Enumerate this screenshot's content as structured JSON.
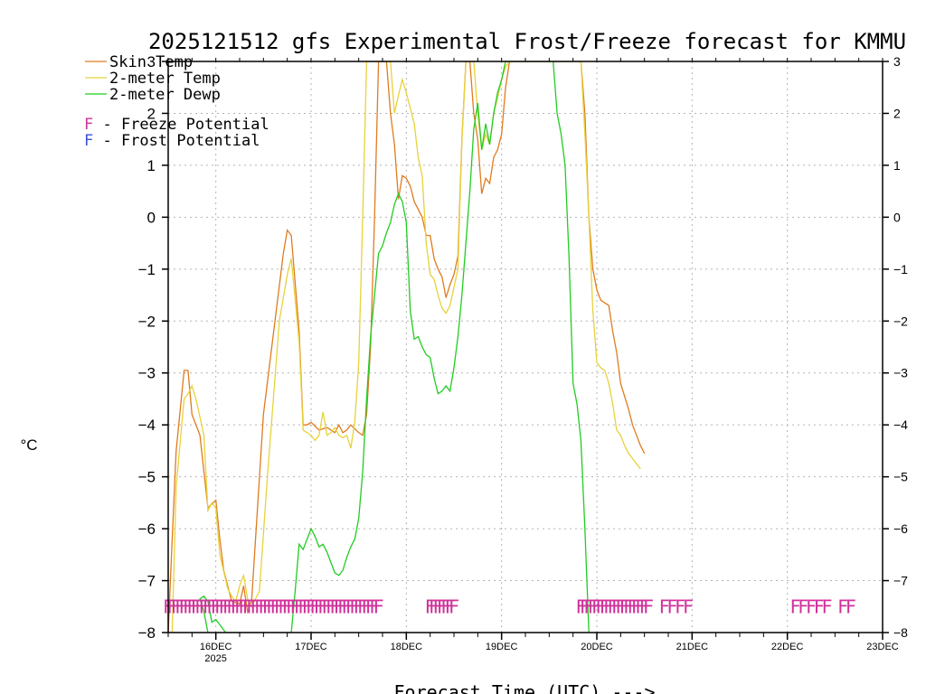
{
  "chart_data": {
    "type": "line",
    "title": "2025121512 gfs Experimental Frost/Freeze forecast for KMMU",
    "ylabel": "°C",
    "xlabel": "Forecast Time (UTC) --->",
    "ylim": [
      -8,
      3
    ],
    "yticks": [
      -8,
      -7,
      -6,
      -5,
      -4,
      -3,
      -2,
      -1,
      0,
      1,
      2,
      3
    ],
    "xlim_hours": [
      0,
      180
    ],
    "xticks": [
      {
        "hour": 12,
        "label": "16DEC",
        "sublabel": "2025"
      },
      {
        "hour": 36,
        "label": "17DEC"
      },
      {
        "hour": 60,
        "label": "18DEC"
      },
      {
        "hour": 84,
        "label": "19DEC"
      },
      {
        "hour": 108,
        "label": "20DEC"
      },
      {
        "hour": 132,
        "label": "21DEC"
      },
      {
        "hour": 156,
        "label": "22DEC"
      },
      {
        "hour": 180,
        "label": "23DEC"
      }
    ],
    "legend": {
      "placement": "top-left",
      "series_entries": [
        "Skin Temp",
        "2-meter Temp",
        "2-meter Dewp"
      ],
      "marker_entries": [
        {
          "glyph": "F",
          "text": " - Freeze Potential",
          "color": "#d0309a"
        },
        {
          "glyph": "F",
          "text": " - Frost Potential",
          "color": "#3c50e0"
        }
      ]
    },
    "series": [
      {
        "name": "Skin Temp",
        "color": "#e07b1e",
        "points": [
          [
            0,
            -8
          ],
          [
            1,
            -6.2
          ],
          [
            2,
            -4.5
          ],
          [
            4,
            -2.95
          ],
          [
            5,
            -2.95
          ],
          [
            6,
            -3.8
          ],
          [
            8,
            -4.2
          ],
          [
            10,
            -5.6
          ],
          [
            12,
            -5.45
          ],
          [
            13,
            -6.2
          ],
          [
            14,
            -6.8
          ],
          [
            16,
            -7.4
          ],
          [
            18,
            -7.45
          ],
          [
            19,
            -7.1
          ],
          [
            20,
            -7.6
          ],
          [
            21,
            -7.4
          ],
          [
            24,
            -3.8
          ],
          [
            29,
            -0.7
          ],
          [
            30,
            -0.25
          ],
          [
            31,
            -0.35
          ],
          [
            33,
            -2.2
          ],
          [
            34,
            -4.0
          ],
          [
            35,
            -4.0
          ],
          [
            36,
            -3.95
          ],
          [
            38,
            -4.1
          ],
          [
            40,
            -4.05
          ],
          [
            42,
            -4.15
          ],
          [
            43,
            -4.0
          ],
          [
            44,
            -4.15
          ],
          [
            45,
            -4.1
          ],
          [
            46,
            -4.0
          ],
          [
            48,
            -4.15
          ],
          [
            49,
            -4.2
          ],
          [
            50,
            -3.8
          ],
          [
            51,
            -2.5
          ],
          [
            52,
            0
          ],
          [
            53,
            3
          ],
          [
            55,
            3
          ],
          [
            56,
            2
          ],
          [
            57,
            1.4
          ],
          [
            58,
            0.35
          ],
          [
            59,
            0.8
          ],
          [
            60,
            0.75
          ],
          [
            61,
            0.6
          ],
          [
            62,
            0.3
          ],
          [
            63,
            0.15
          ],
          [
            64,
            0
          ],
          [
            65,
            -0.35
          ],
          [
            66,
            -0.35
          ],
          [
            67,
            -0.8
          ],
          [
            68,
            -1.0
          ],
          [
            69,
            -1.15
          ],
          [
            70,
            -1.55
          ],
          [
            71,
            -1.3
          ],
          [
            72,
            -1.1
          ],
          [
            73,
            -0.75
          ],
          [
            74,
            1.5
          ],
          [
            75,
            3
          ],
          [
            76,
            3
          ],
          [
            77,
            2.0
          ],
          [
            78,
            1.5
          ],
          [
            79,
            0.45
          ],
          [
            80,
            0.75
          ],
          [
            81,
            0.65
          ],
          [
            82,
            1.15
          ],
          [
            83,
            1.3
          ],
          [
            84,
            1.6
          ],
          [
            85,
            2.5
          ],
          [
            86,
            3
          ],
          [
            104,
            3
          ],
          [
            105,
            2.0
          ],
          [
            106,
            0
          ],
          [
            107,
            -1.0
          ],
          [
            108,
            -1.4
          ],
          [
            109,
            -1.6
          ],
          [
            110,
            -1.65
          ],
          [
            111,
            -1.7
          ],
          [
            112,
            -2.2
          ],
          [
            113,
            -2.6
          ],
          [
            114,
            -3.2
          ],
          [
            116,
            -3.7
          ],
          [
            117,
            -4.0
          ],
          [
            118,
            -4.2
          ],
          [
            119,
            -4.4
          ],
          [
            120,
            -4.55
          ]
        ]
      },
      {
        "name": "2-meter Temp",
        "color": "#e8d23a",
        "points": [
          [
            1,
            -8
          ],
          [
            2,
            -5.2
          ],
          [
            4,
            -3.5
          ],
          [
            5,
            -3.4
          ],
          [
            6,
            -3.25
          ],
          [
            7,
            -3.5
          ],
          [
            8,
            -3.85
          ],
          [
            9,
            -4.2
          ],
          [
            10,
            -5.65
          ],
          [
            11,
            -5.5
          ],
          [
            12,
            -5.6
          ],
          [
            13,
            -6.5
          ],
          [
            15,
            -7.15
          ],
          [
            16,
            -7.3
          ],
          [
            17,
            -7.4
          ],
          [
            18,
            -7.1
          ],
          [
            19,
            -6.9
          ],
          [
            20,
            -7.35
          ],
          [
            21,
            -7.5
          ],
          [
            23,
            -7.2
          ],
          [
            25,
            -5.0
          ],
          [
            28,
            -2.0
          ],
          [
            30,
            -1.1
          ],
          [
            31,
            -0.8
          ],
          [
            33,
            -2.4
          ],
          [
            34,
            -4.1
          ],
          [
            36,
            -4.2
          ],
          [
            37,
            -4.3
          ],
          [
            38,
            -4.2
          ],
          [
            39,
            -3.75
          ],
          [
            40,
            -4.2
          ],
          [
            41,
            -4.15
          ],
          [
            42,
            -4.05
          ],
          [
            43,
            -4.2
          ],
          [
            44,
            -4.25
          ],
          [
            45,
            -4.2
          ],
          [
            46,
            -4.45
          ],
          [
            47,
            -3.95
          ],
          [
            48,
            -2.8
          ],
          [
            49,
            0
          ],
          [
            50,
            3
          ],
          [
            56,
            3
          ],
          [
            57,
            2.0
          ],
          [
            58,
            2.35
          ],
          [
            59,
            2.65
          ],
          [
            60,
            2.4
          ],
          [
            61,
            2.1
          ],
          [
            62,
            1.8
          ],
          [
            63,
            1.15
          ],
          [
            64,
            0.8
          ],
          [
            65,
            -0.5
          ],
          [
            66,
            -1.1
          ],
          [
            67,
            -1.2
          ],
          [
            68,
            -1.5
          ],
          [
            69,
            -1.75
          ],
          [
            70,
            -1.85
          ],
          [
            71,
            -1.7
          ],
          [
            72,
            -1.35
          ],
          [
            73,
            -1.0
          ],
          [
            74,
            1.5
          ],
          [
            75,
            3
          ],
          [
            77,
            3
          ],
          [
            78,
            2.0
          ],
          [
            79,
            1.3
          ],
          [
            80,
            1.6
          ],
          [
            81,
            1.4
          ],
          [
            82,
            2.0
          ],
          [
            83,
            2.3
          ],
          [
            84,
            2.65
          ],
          [
            85,
            2.9
          ],
          [
            86,
            3
          ],
          [
            104,
            3
          ],
          [
            105,
            1.6
          ],
          [
            106,
            0
          ],
          [
            107,
            -1.8
          ],
          [
            108,
            -2.8
          ],
          [
            109,
            -2.9
          ],
          [
            110,
            -2.95
          ],
          [
            111,
            -3.2
          ],
          [
            112,
            -3.6
          ],
          [
            113,
            -4.1
          ],
          [
            114,
            -4.2
          ],
          [
            115,
            -4.4
          ],
          [
            116,
            -4.55
          ],
          [
            117,
            -4.65
          ],
          [
            118,
            -4.75
          ],
          [
            119,
            -4.85
          ]
        ]
      },
      {
        "name": "2-meter Dewp",
        "color": "#22cc22",
        "points": [
          [
            10,
            -8
          ],
          [
            9,
            -7.6
          ],
          [
            8,
            -7.35
          ],
          [
            9,
            -7.3
          ],
          [
            10,
            -7.4
          ],
          [
            11,
            -7.8
          ],
          [
            12,
            -7.75
          ],
          [
            13,
            -7.85
          ],
          [
            14,
            -7.95
          ],
          [
            14.5,
            -8
          ],
          [
            31,
            -8
          ],
          [
            32,
            -7.2
          ],
          [
            33,
            -6.3
          ],
          [
            34,
            -6.4
          ],
          [
            35,
            -6.2
          ],
          [
            36,
            -6.0
          ],
          [
            37,
            -6.15
          ],
          [
            38,
            -6.35
          ],
          [
            39,
            -6.3
          ],
          [
            40,
            -6.45
          ],
          [
            41,
            -6.65
          ],
          [
            42,
            -6.85
          ],
          [
            43,
            -6.9
          ],
          [
            44,
            -6.8
          ],
          [
            45,
            -6.55
          ],
          [
            46,
            -6.35
          ],
          [
            47,
            -6.2
          ],
          [
            48,
            -5.8
          ],
          [
            49,
            -4.9
          ],
          [
            50,
            -3.5
          ],
          [
            51,
            -2.3
          ],
          [
            52,
            -1.5
          ],
          [
            53,
            -0.7
          ],
          [
            54,
            -0.55
          ],
          [
            55,
            -0.3
          ],
          [
            56,
            -0.1
          ],
          [
            57,
            0.25
          ],
          [
            58,
            0.45
          ],
          [
            59,
            0.3
          ],
          [
            60,
            -0.1
          ],
          [
            61,
            -1.8
          ],
          [
            62,
            -2.35
          ],
          [
            63,
            -2.3
          ],
          [
            64,
            -2.5
          ],
          [
            65,
            -2.65
          ],
          [
            66,
            -2.7
          ],
          [
            67,
            -3.1
          ],
          [
            68,
            -3.4
          ],
          [
            69,
            -3.35
          ],
          [
            70,
            -3.25
          ],
          [
            71,
            -3.35
          ],
          [
            72,
            -2.9
          ],
          [
            73,
            -2.3
          ],
          [
            74,
            -1.5
          ],
          [
            75,
            -0.5
          ],
          [
            76,
            0.5
          ],
          [
            77,
            1.7
          ],
          [
            78,
            2.2
          ],
          [
            79,
            1.3
          ],
          [
            80,
            1.8
          ],
          [
            81,
            1.4
          ],
          [
            82,
            2.0
          ],
          [
            83,
            2.4
          ],
          [
            84,
            2.65
          ],
          [
            85,
            3
          ],
          [
            97,
            3
          ],
          [
            98,
            2.0
          ],
          [
            99,
            1.6
          ],
          [
            100,
            1.0
          ],
          [
            101,
            -0.8
          ],
          [
            102,
            -3.2
          ],
          [
            103,
            -3.6
          ],
          [
            104,
            -4.3
          ],
          [
            105,
            -6.0
          ],
          [
            106,
            -8
          ]
        ]
      }
    ],
    "freeze_potential_hours": [
      0,
      1,
      2,
      3,
      4,
      5,
      6,
      7,
      8,
      9,
      10,
      11,
      12,
      13,
      14,
      15,
      16,
      17,
      18,
      19,
      20,
      21,
      22,
      23,
      24,
      25,
      26,
      27,
      28,
      29,
      30,
      31,
      32,
      33,
      34,
      35,
      36,
      37,
      38,
      39,
      40,
      41,
      42,
      43,
      44,
      45,
      46,
      47,
      48,
      49,
      50,
      51,
      52,
      53,
      66,
      67,
      68,
      69,
      70,
      71,
      72,
      104,
      105,
      106,
      107,
      108,
      109,
      110,
      111,
      112,
      113,
      114,
      115,
      116,
      117,
      118,
      119,
      120,
      121,
      125,
      127,
      129,
      131,
      158,
      160,
      162,
      164,
      166,
      170,
      172
    ],
    "frost_potential_hours": []
  }
}
